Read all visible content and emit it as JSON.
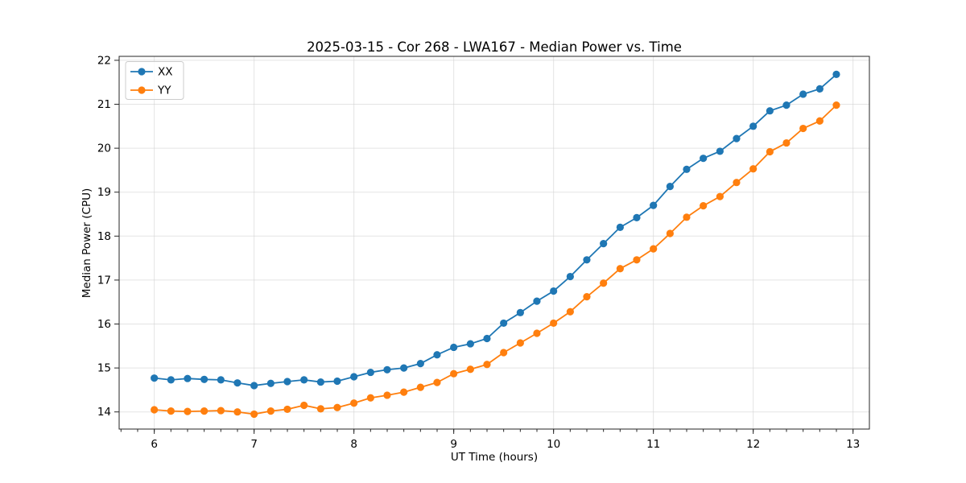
{
  "chart_data": {
    "type": "line",
    "title": "2025-03-15 - Cor 268 - LWA167 - Median Power vs. Time",
    "xlabel": "UT Time (hours)",
    "ylabel": "Median Power (CPU)",
    "xlim": [
      5.648,
      13.164
    ],
    "ylim": [
      13.61,
      22.09
    ],
    "x_major_ticks": [
      6,
      7,
      8,
      9,
      10,
      11,
      12,
      13
    ],
    "y_major_ticks": [
      14,
      15,
      16,
      17,
      18,
      19,
      20,
      21,
      22
    ],
    "x_minor_step": 0.166667,
    "grid": "major-only",
    "legend_position": "upper-left",
    "marker": "circle",
    "x": [
      6.0,
      6.167,
      6.333,
      6.5,
      6.667,
      6.833,
      7.0,
      7.167,
      7.333,
      7.5,
      7.667,
      7.833,
      8.0,
      8.167,
      8.333,
      8.5,
      8.667,
      8.833,
      9.0,
      9.167,
      9.333,
      9.5,
      9.667,
      9.833,
      10.0,
      10.167,
      10.333,
      10.5,
      10.667,
      10.833,
      11.0,
      11.167,
      11.333,
      11.5,
      11.667,
      11.833,
      12.0,
      12.167,
      12.333,
      12.5,
      12.667,
      12.833
    ],
    "series": [
      {
        "name": "XX",
        "color": "#1f77b4",
        "values": [
          14.77,
          14.73,
          14.76,
          14.74,
          14.73,
          14.66,
          14.6,
          14.65,
          14.69,
          14.73,
          14.68,
          14.7,
          14.8,
          14.9,
          14.96,
          15.0,
          15.1,
          15.3,
          15.47,
          15.55,
          15.67,
          16.02,
          16.26,
          16.52,
          16.75,
          17.08,
          17.46,
          17.83,
          18.2,
          18.42,
          18.7,
          19.13,
          19.52,
          19.77,
          19.93,
          20.22,
          20.5,
          20.85,
          20.98,
          21.23,
          21.35,
          21.68
        ]
      },
      {
        "name": "YY",
        "color": "#ff7f0e",
        "values": [
          14.05,
          14.02,
          14.01,
          14.02,
          14.03,
          14.0,
          13.95,
          14.02,
          14.06,
          14.15,
          14.07,
          14.1,
          14.2,
          14.32,
          14.38,
          14.45,
          14.56,
          14.67,
          14.87,
          14.97,
          15.08,
          15.35,
          15.57,
          15.79,
          16.02,
          16.28,
          16.62,
          16.93,
          17.26,
          17.46,
          17.71,
          18.06,
          18.43,
          18.69,
          18.9,
          19.22,
          19.53,
          19.92,
          20.12,
          20.45,
          20.62,
          20.98
        ]
      }
    ],
    "colors": {
      "spine": "#262626",
      "grid": "#cfcfcf",
      "background": "#ffffff"
    }
  }
}
